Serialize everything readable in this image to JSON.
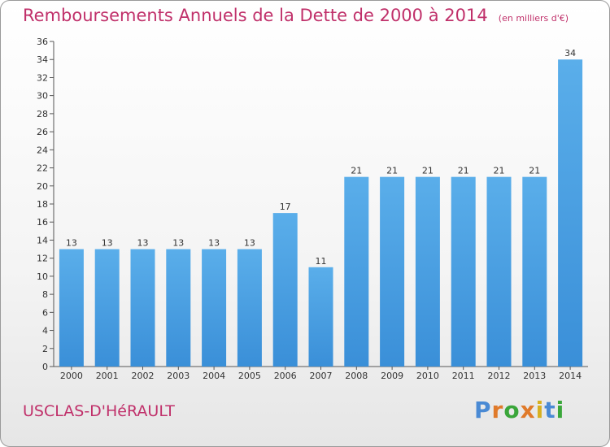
{
  "chart_data": {
    "type": "bar",
    "title": "Remboursements Annuels de la Dette de 2000 à 2014",
    "subtitle": "(en milliers d'€)",
    "xlabel": "",
    "ylabel": "",
    "categories": [
      "2000",
      "2001",
      "2002",
      "2003",
      "2004",
      "2005",
      "2006",
      "2007",
      "2008",
      "2009",
      "2010",
      "2011",
      "2012",
      "2013",
      "2014"
    ],
    "values": [
      13,
      13,
      13,
      13,
      13,
      13,
      17,
      11,
      21,
      21,
      21,
      21,
      21,
      21,
      34
    ],
    "ylim": [
      0,
      36
    ],
    "ytick_step": 2,
    "grid": false,
    "legend": "none",
    "bar_color": "#3a8fd8",
    "bar_color_light": "#5aaeea"
  },
  "footer": {
    "commune": "USCLAS-D'HéRAULT",
    "brand": [
      "P",
      "r",
      "o",
      "x",
      "i",
      "t",
      "i"
    ],
    "brand_colors": [
      "#4a8ad4",
      "#e07a2a",
      "#3aa63a",
      "#e07a2a",
      "#d8b020",
      "#4a8ad4",
      "#3aa63a"
    ]
  }
}
